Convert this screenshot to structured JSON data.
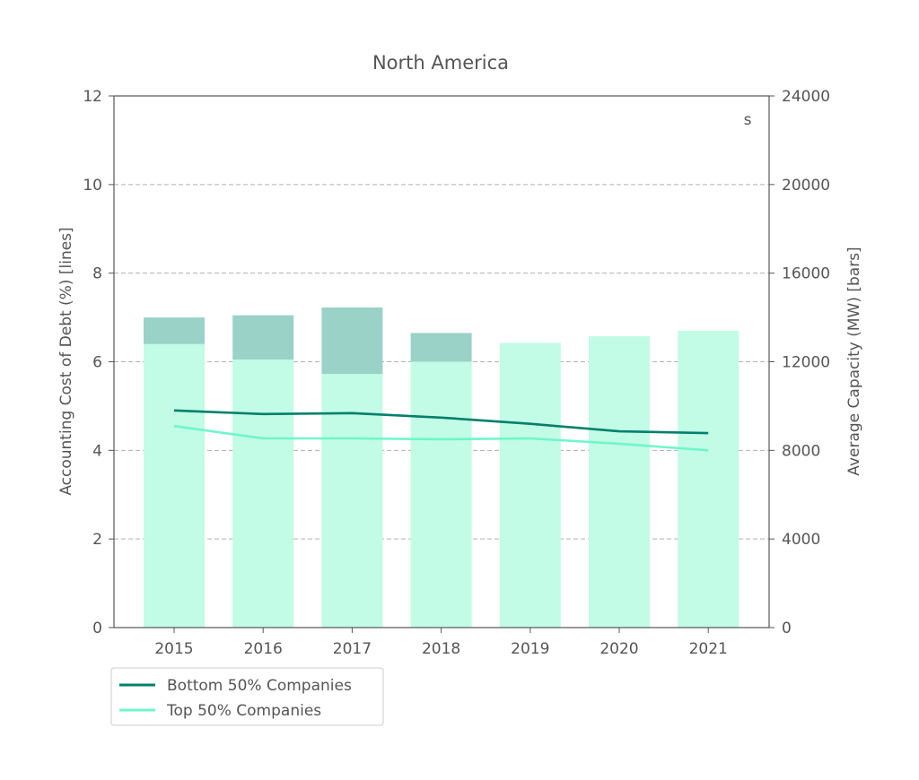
{
  "chart_data": {
    "type": "bar+line",
    "title": "North America",
    "corner_label": "s",
    "categories": [
      "2015",
      "2016",
      "2017",
      "2018",
      "2019",
      "2020",
      "2021"
    ],
    "y_left": {
      "label": "Accounting Cost of Debt (%)  [lines]",
      "lim": [
        0,
        12
      ],
      "ticks": [
        "0",
        "2",
        "4",
        "6",
        "8",
        "10",
        "12"
      ]
    },
    "y_right": {
      "label": "Average Capacity (MW) [bars]",
      "lim": [
        0,
        24000
      ],
      "ticks": [
        "0",
        "4000",
        "8000",
        "12000",
        "16000",
        "20000",
        "24000"
      ]
    },
    "grid": "horizontal-dashed",
    "legend": "bottom-left",
    "bar_series": [
      {
        "values": [
          12800,
          12100,
          11450,
          12000,
          12850,
          13150,
          13400
        ],
        "color": "#c2fbe6"
      },
      {
        "values": [
          1200,
          2000,
          3000,
          1300,
          0,
          0,
          0
        ],
        "color": "#9ad2c8"
      }
    ],
    "line_series": [
      {
        "name": "Bottom 50% Companies",
        "color": "#00806b",
        "values": [
          4.9,
          4.82,
          4.84,
          4.74,
          4.6,
          4.43,
          4.39
        ]
      },
      {
        "name": "Top 50% Companies",
        "color": "#6ef6cc",
        "values": [
          4.55,
          4.27,
          4.27,
          4.25,
          4.27,
          4.15,
          4.0
        ]
      }
    ]
  }
}
